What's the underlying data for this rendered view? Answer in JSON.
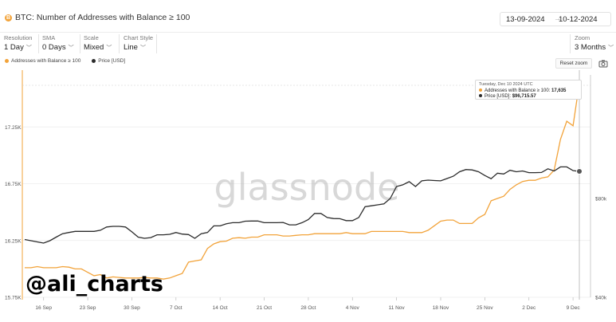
{
  "header": {
    "btc_symbol": "B",
    "title": "BTC: Number of Addresses with Balance ≥ 100",
    "date_start": "13-09-2024",
    "date_sep": "→",
    "date_end": "10-12-2024"
  },
  "toolbar": {
    "resolution": {
      "label": "Resolution",
      "value": "1 Day"
    },
    "sma": {
      "label": "SMA",
      "value": "0 Days"
    },
    "scale": {
      "label": "Scale",
      "value": "Mixed"
    },
    "chart_style": {
      "label": "Chart Style",
      "value": "Line"
    },
    "zoom": {
      "label": "Zoom",
      "value": "3 Months"
    }
  },
  "legend": {
    "reset_label": "Reset zoom"
  },
  "tooltip": {
    "date": "Tuesday, Dec 10 2024 UTC",
    "addresses_label": "Addresses with Balance ≥ 100:",
    "addresses_value": "17,635",
    "price_label": "Price [USD]:",
    "price_value": "$96,715.57"
  },
  "watermark": "glassnode",
  "handle": "@ali_charts",
  "colors": {
    "addresses": "#f2a33a",
    "price": "#2b2b2b"
  },
  "chart_data": {
    "type": "line",
    "title": "BTC: Number of Addresses with Balance ≥ 100",
    "x": [
      "2024-09-13",
      "2024-09-14",
      "2024-09-15",
      "2024-09-16",
      "2024-09-17",
      "2024-09-18",
      "2024-09-19",
      "2024-09-20",
      "2024-09-21",
      "2024-09-22",
      "2024-09-23",
      "2024-09-24",
      "2024-09-25",
      "2024-09-26",
      "2024-09-27",
      "2024-09-28",
      "2024-09-29",
      "2024-09-30",
      "2024-10-01",
      "2024-10-02",
      "2024-10-03",
      "2024-10-04",
      "2024-10-05",
      "2024-10-06",
      "2024-10-07",
      "2024-10-08",
      "2024-10-09",
      "2024-10-10",
      "2024-10-11",
      "2024-10-12",
      "2024-10-13",
      "2024-10-14",
      "2024-10-15",
      "2024-10-16",
      "2024-10-17",
      "2024-10-18",
      "2024-10-19",
      "2024-10-20",
      "2024-10-21",
      "2024-10-22",
      "2024-10-23",
      "2024-10-24",
      "2024-10-25",
      "2024-10-26",
      "2024-10-27",
      "2024-10-28",
      "2024-10-29",
      "2024-10-30",
      "2024-10-31",
      "2024-11-01",
      "2024-11-02",
      "2024-11-03",
      "2024-11-04",
      "2024-11-05",
      "2024-11-06",
      "2024-11-07",
      "2024-11-08",
      "2024-11-09",
      "2024-11-10",
      "2024-11-11",
      "2024-11-12",
      "2024-11-13",
      "2024-11-14",
      "2024-11-15",
      "2024-11-16",
      "2024-11-17",
      "2024-11-18",
      "2024-11-19",
      "2024-11-20",
      "2024-11-21",
      "2024-11-22",
      "2024-11-23",
      "2024-11-24",
      "2024-11-25",
      "2024-11-26",
      "2024-11-27",
      "2024-11-28",
      "2024-11-29",
      "2024-11-30",
      "2024-12-01",
      "2024-12-02",
      "2024-12-03",
      "2024-12-04",
      "2024-12-05",
      "2024-12-06",
      "2024-12-07",
      "2024-12-08",
      "2024-12-09",
      "2024-12-10"
    ],
    "series": [
      {
        "name": "Addresses with Balance ≥ 100",
        "axis": "left",
        "values": [
          16010,
          16010,
          16020,
          16010,
          16010,
          16010,
          16020,
          16015,
          16000,
          16000,
          15970,
          15940,
          15950,
          15920,
          15930,
          15925,
          15920,
          15920,
          15920,
          15925,
          15920,
          15920,
          15910,
          15920,
          15940,
          15960,
          16060,
          16070,
          16080,
          16180,
          16220,
          16240,
          16245,
          16270,
          16275,
          16270,
          16280,
          16280,
          16300,
          16300,
          16300,
          16290,
          16290,
          16295,
          16300,
          16300,
          16310,
          16310,
          16310,
          16310,
          16310,
          16320,
          16310,
          16310,
          16310,
          16330,
          16330,
          16330,
          16330,
          16330,
          16330,
          16320,
          16320,
          16320,
          16340,
          16380,
          16420,
          16430,
          16430,
          16400,
          16400,
          16400,
          16450,
          16480,
          16600,
          16620,
          16640,
          16700,
          16740,
          16770,
          16780,
          16780,
          16800,
          16810,
          16870,
          17140,
          17300,
          17260,
          17635
        ]
      },
      {
        "name": "Price [USD]",
        "axis": "right",
        "values": [
          60000,
          59500,
          59000,
          58500,
          59500,
          61000,
          62500,
          63000,
          63500,
          63500,
          63500,
          63500,
          64000,
          65500,
          65800,
          65800,
          65500,
          63300,
          61000,
          60500,
          60800,
          62000,
          62000,
          62200,
          63000,
          62300,
          62100,
          60500,
          62500,
          63000,
          66000,
          66000,
          67000,
          67500,
          67500,
          68200,
          68300,
          68300,
          67500,
          67500,
          67500,
          67600,
          66500,
          66500,
          67500,
          69000,
          72000,
          72000,
          70000,
          69500,
          69400,
          68500,
          68500,
          70000,
          75500,
          76000,
          76500,
          77000,
          80000,
          87000,
          88000,
          90000,
          87000,
          90500,
          91000,
          90700,
          90500,
          92000,
          93500,
          96500,
          98000,
          97700,
          96500,
          94000,
          91900,
          95500,
          95000,
          97500,
          96500,
          97000,
          95900,
          95900,
          96000,
          98500,
          97000,
          99800,
          99800,
          97300,
          96715.57
        ]
      }
    ],
    "y_left": {
      "ticks": [
        "15.75K",
        "16.25K",
        "16.75K",
        "17.25K"
      ],
      "range": [
        15750,
        17750
      ]
    },
    "y_right": {
      "ticks": [
        "$40k",
        "$80k"
      ],
      "scale": "log"
    },
    "x_ticks": [
      "16 Sep",
      "23 Sep",
      "30 Sep",
      "7 Oct",
      "14 Oct",
      "21 Oct",
      "28 Oct",
      "4 Nov",
      "11 Nov",
      "18 Nov",
      "25 Nov",
      "2 Dec",
      "9 Dec"
    ],
    "grid": "horizontal",
    "legend": "top-left"
  }
}
